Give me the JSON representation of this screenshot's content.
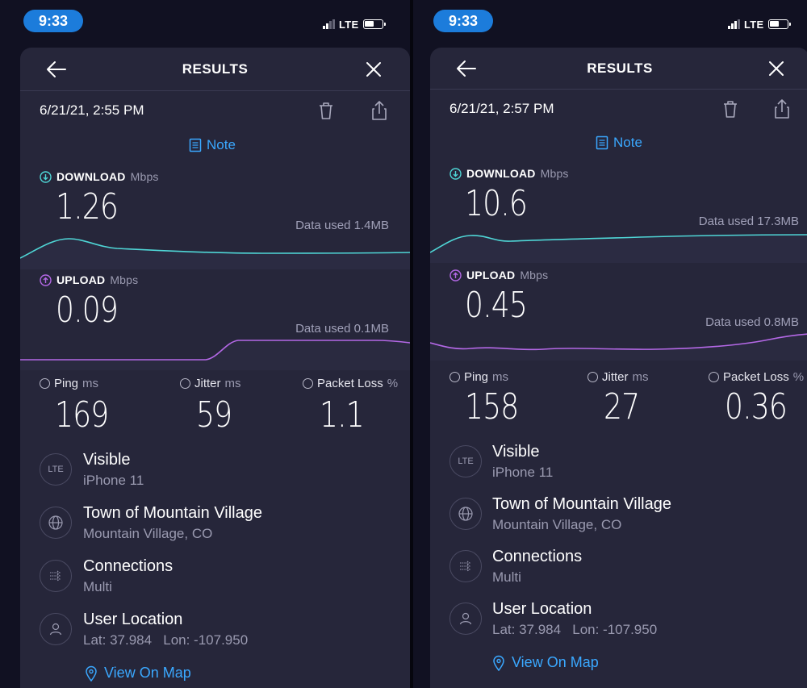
{
  "screens": [
    {
      "status": {
        "time": "9:33",
        "network": "LTE"
      },
      "header": {
        "title": "RESULTS"
      },
      "date": "6/21/21, 2:55 PM",
      "note_label": "Note",
      "download": {
        "label": "DOWNLOAD",
        "unit": "Mbps",
        "value": "1.26",
        "data_used": "Data used 1.4MB"
      },
      "upload": {
        "label": "UPLOAD",
        "unit": "Mbps",
        "value": "0.09",
        "data_used": "Data used 0.1MB"
      },
      "ping": {
        "label": "Ping",
        "unit": "ms",
        "value": "169"
      },
      "jitter": {
        "label": "Jitter",
        "unit": "ms",
        "value": "59"
      },
      "packet_loss": {
        "label": "Packet Loss",
        "unit": "%",
        "value": "1.1"
      },
      "info": [
        {
          "icon": "lte-icon",
          "icon_text": "LTE",
          "title": "Visible",
          "subtitle": "iPhone 11"
        },
        {
          "icon": "globe-icon",
          "title": "Town of Mountain Village",
          "subtitle": "Mountain Village, CO"
        },
        {
          "icon": "connections-icon",
          "title": "Connections",
          "subtitle": "Multi"
        },
        {
          "icon": "user-icon",
          "title": "User Location",
          "subtitle": "Lat: 37.984   Lon: -107.950"
        }
      ],
      "map_link": "View On Map"
    },
    {
      "status": {
        "time": "9:33",
        "network": "LTE"
      },
      "header": {
        "title": "RESULTS"
      },
      "date": "6/21/21, 2:57 PM",
      "note_label": "Note",
      "download": {
        "label": "DOWNLOAD",
        "unit": "Mbps",
        "value": "10.6",
        "data_used": "Data used 17.3MB"
      },
      "upload": {
        "label": "UPLOAD",
        "unit": "Mbps",
        "value": "0.45",
        "data_used": "Data used 0.8MB"
      },
      "ping": {
        "label": "Ping",
        "unit": "ms",
        "value": "158"
      },
      "jitter": {
        "label": "Jitter",
        "unit": "ms",
        "value": "27"
      },
      "packet_loss": {
        "label": "Packet Loss",
        "unit": "%",
        "value": "0.36"
      },
      "info": [
        {
          "icon": "lte-icon",
          "icon_text": "LTE",
          "title": "Visible",
          "subtitle": "iPhone 11"
        },
        {
          "icon": "globe-icon",
          "title": "Town of Mountain Village",
          "subtitle": "Mountain Village, CO"
        },
        {
          "icon": "connections-icon",
          "title": "Connections",
          "subtitle": "Multi"
        },
        {
          "icon": "user-icon",
          "title": "User Location",
          "subtitle": "Lat: 37.984   Lon: -107.950"
        }
      ],
      "map_link": "View On Map"
    }
  ],
  "colors": {
    "background": "#111122",
    "card": "#26263a",
    "accent_blue": "#3aa8ff",
    "time_pill": "#1c7cdb",
    "download_line": "#4fd6d6",
    "upload_line": "#b468e6",
    "muted_text": "#9a9ab0"
  }
}
